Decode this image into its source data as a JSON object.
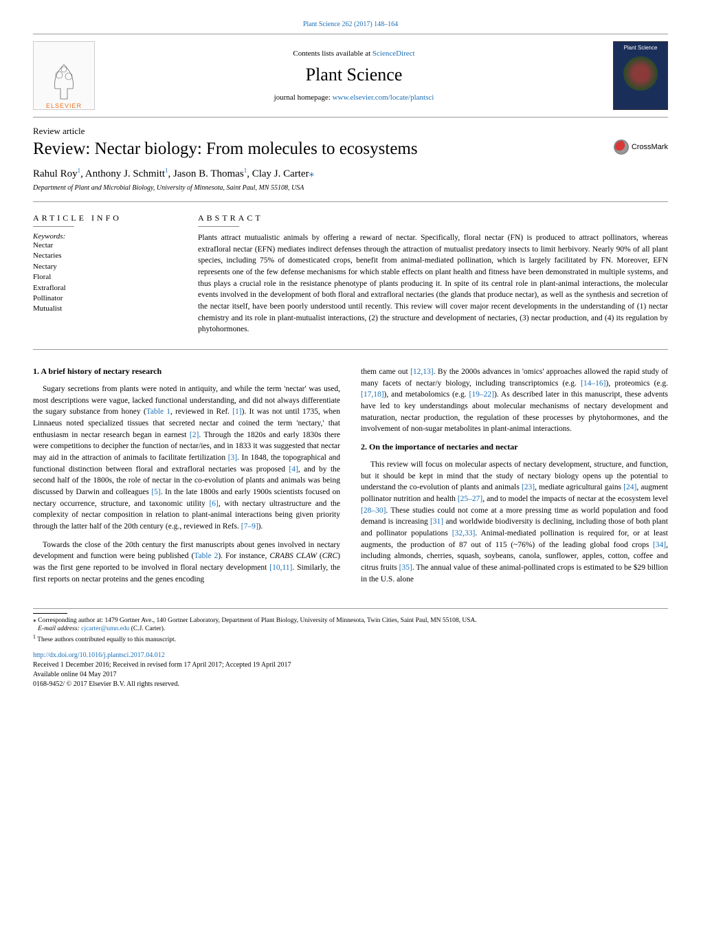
{
  "header": {
    "top_link_text": "Plant Science 262 (2017) 148–164",
    "contents_prefix": "Contents lists available at ",
    "contents_link": "ScienceDirect",
    "journal_title": "Plant Science",
    "homepage_prefix": "journal homepage: ",
    "homepage_link": "www.elsevier.com/locate/plantsci",
    "publisher_name": "ELSEVIER",
    "cover_title": "Plant Science"
  },
  "article": {
    "type": "Review article",
    "title": "Review: Nectar biology: From molecules to ecosystems",
    "crossmark_label": "CrossMark",
    "authors_html": "Rahul Roy<sup>1</sup>, Anthony J. Schmitt<sup>1</sup>, Jason B. Thomas<sup>1</sup>, Clay J. Carter",
    "corresponding_marker": "⁎",
    "affiliation": "Department of Plant and Microbial Biology, University of Minnesota, Saint Paul, MN 55108, USA"
  },
  "info": {
    "article_info_label": "ARTICLE INFO",
    "abstract_label": "ABSTRACT",
    "keywords_label": "Keywords:",
    "keywords": [
      "Nectar",
      "Nectaries",
      "Nectary",
      "Floral",
      "Extrafloral",
      "Pollinator",
      "Mutualist"
    ],
    "abstract": "Plants attract mutualistic animals by offering a reward of nectar. Specifically, floral nectar (FN) is produced to attract pollinators, whereas extrafloral nectar (EFN) mediates indirect defenses through the attraction of mutualist predatory insects to limit herbivory. Nearly 90% of all plant species, including 75% of domesticated crops, benefit from animal-mediated pollination, which is largely facilitated by FN. Moreover, EFN represents one of the few defense mechanisms for which stable effects on plant health and fitness have been demonstrated in multiple systems, and thus plays a crucial role in the resistance phenotype of plants producing it. In spite of its central role in plant-animal interactions, the molecular events involved in the development of both floral and extrafloral nectaries (the glands that produce nectar), as well as the synthesis and secretion of the nectar itself, have been poorly understood until recently. This review will cover major recent developments in the understanding of (1) nectar chemistry and its role in plant-mutualist interactions, (2) the structure and development of nectaries, (3) nectar production, and (4) its regulation by phytohormones."
  },
  "body": {
    "section1_title": "1. A brief history of nectary research",
    "section1_p1": "Sugary secretions from plants were noted in antiquity, and while the term 'nectar' was used, most descriptions were vague, lacked functional understanding, and did not always differentiate the sugary substance from honey (Table 1, reviewed in Ref. [1]). It was not until 1735, when Linnaeus noted specialized tissues that secreted nectar and coined the term 'nectary,' that enthusiasm in nectar research began in earnest [2]. Through the 1820s and early 1830s there were competitions to decipher the function of nectar/ies, and in 1833 it was suggested that nectar may aid in the attraction of animals to facilitate fertilization [3]. In 1848, the topographical and functional distinction between floral and extrafloral nectaries was proposed [4], and by the second half of the 1800s, the role of nectar in the co-evolution of plants and animals was being discussed by Darwin and colleagues [5]. In the late 1800s and early 1900s scientists focused on nectary occurrence, structure, and taxonomic utility [6], with nectary ultrastructure and the complexity of nectar composition in relation to plant-animal interactions being given priority through the latter half of the 20th century (e.g., reviewed in Refs. [7–9]).",
    "section1_p2": "Towards the close of the 20th century the first manuscripts about genes involved in nectary development and function were being published (Table 2). For instance, CRABS CLAW (CRC) was the first gene reported to be involved in floral nectary development [10,11]. Similarly, the first reports on nectar proteins and the genes encoding",
    "col2_p1": "them came out [12,13]. By the 2000s advances in 'omics' approaches allowed the rapid study of many facets of nectar/y biology, including transcriptomics (e.g. [14–16]), proteomics (e.g. [17,18]), and metabolomics (e.g. [19–22]). As described later in this manuscript, these advents have led to key understandings about molecular mechanisms of nectary development and maturation, nectar production, the regulation of these processes by phytohormones, and the involvement of non-sugar metabolites in plant-animal interactions.",
    "section2_title": "2. On the importance of nectaries and nectar",
    "section2_p1": "This review will focus on molecular aspects of nectary development, structure, and function, but it should be kept in mind that the study of nectary biology opens up the potential to understand the co-evolution of plants and animals [23], mediate agricultural gains [24], augment pollinator nutrition and health [25–27], and to model the impacts of nectar at the ecosystem level [28–30]. These studies could not come at a more pressing time as world population and food demand is increasing [31] and worldwide biodiversity is declining, including those of both plant and pollinator populations [32,33]. Animal-mediated pollination is required for, or at least augments, the production of 87 out of 115 (~76%) of the leading global food crops [34], including almonds, cherries, squash, soybeans, canola, sunflower, apples, cotton, coffee and citrus fruits [35]. The annual value of these animal-pollinated crops is estimated to be $29 billion in the U.S. alone"
  },
  "footnotes": {
    "corresponding": "⁎ Corresponding author at: 1479 Gortner Ave., 140 Gortner Laboratory, Department of Plant Biology, University of Minnesota, Twin Cities, Saint Paul, MN 55108, USA.",
    "email_label": "E-mail address: ",
    "email": "cjcarter@umn.edu",
    "email_suffix": " (C.J. Carter).",
    "equal": "1 These authors contributed equally to this manuscript.",
    "doi": "http://dx.doi.org/10.1016/j.plantsci.2017.04.012",
    "received": "Received 1 December 2016; Received in revised form 17 April 2017; Accepted 19 April 2017",
    "online": "Available online 04 May 2017",
    "copyright": "0168-9452/ © 2017 Elsevier B.V. All rights reserved."
  },
  "colors": {
    "link": "#1a6db5",
    "text": "#000000",
    "orange": "#e9711c",
    "rule": "#999999"
  }
}
